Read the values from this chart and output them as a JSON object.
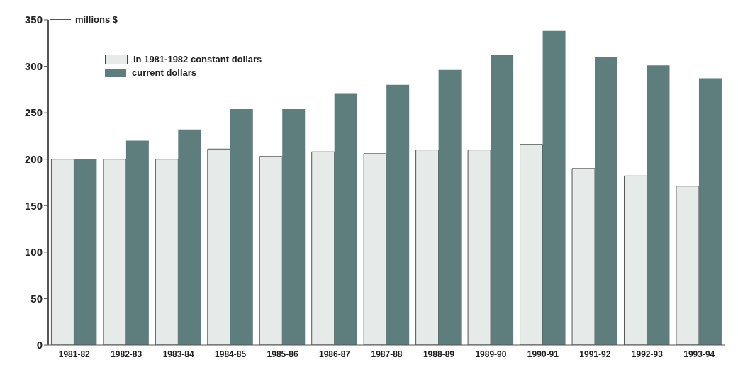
{
  "chart_data": {
    "type": "bar",
    "ylabel": "millions $",
    "categories": [
      "1981-82",
      "1982-83",
      "1983-84",
      "1984-85",
      "1985-86",
      "1986-87",
      "1987-88",
      "1988-89",
      "1989-90",
      "1990-91",
      "1991-92",
      "1992-93",
      "1993-94"
    ],
    "series": [
      {
        "name": "in 1981-1982 constant dollars",
        "color": "#e6ebe9",
        "values": [
          200,
          200,
          200,
          211,
          203,
          208,
          206,
          210,
          210,
          216,
          190,
          182,
          171
        ]
      },
      {
        "name": "current dollars",
        "color": "#5e7d7d",
        "values": [
          200,
          220,
          232,
          254,
          254,
          271,
          280,
          296,
          312,
          338,
          310,
          301,
          287
        ]
      }
    ],
    "ylim": [
      0,
      350
    ],
    "yticks": [
      0,
      50,
      100,
      150,
      200,
      250,
      300,
      350
    ],
    "grid": false,
    "legend": "top left"
  }
}
